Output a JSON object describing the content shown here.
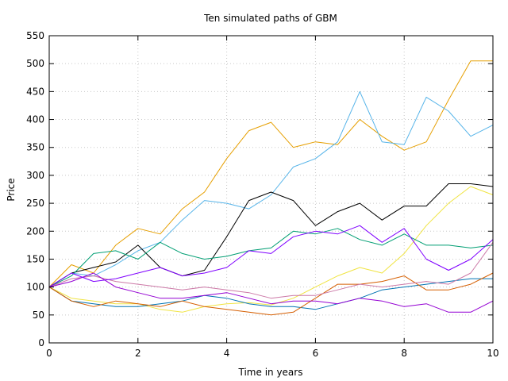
{
  "chart_data": {
    "type": "line",
    "title": "Ten simulated paths of GBM",
    "xlabel": "Time in years",
    "ylabel": "Price",
    "xlim": [
      0,
      10
    ],
    "ylim": [
      0,
      550
    ],
    "xticks": [
      0,
      2,
      4,
      6,
      8,
      10
    ],
    "yticks": [
      0,
      50,
      100,
      150,
      200,
      250,
      300,
      350,
      400,
      450,
      500,
      550
    ],
    "grid": true,
    "legend": "none",
    "series": [
      {
        "color": "#e69f00",
        "x": [
          0,
          0.5,
          1,
          1.5,
          2,
          2.5,
          3,
          3.5,
          4,
          4.5,
          5,
          5.5,
          6,
          6.5,
          7,
          7.5,
          8,
          8.5,
          9,
          9.5,
          10
        ],
        "values": [
          100,
          140,
          125,
          175,
          205,
          195,
          240,
          270,
          330,
          380,
          395,
          350,
          360,
          355,
          400,
          370,
          345,
          360,
          435,
          505,
          505
        ]
      },
      {
        "color": "#56b4e9",
        "x": [
          0,
          0.5,
          1,
          1.5,
          2,
          2.5,
          3,
          3.5,
          4,
          4.5,
          5,
          5.5,
          6,
          6.5,
          7,
          7.5,
          8,
          8.5,
          9,
          9.5,
          10
        ],
        "values": [
          100,
          125,
          120,
          140,
          165,
          180,
          220,
          255,
          250,
          240,
          265,
          315,
          330,
          360,
          450,
          360,
          355,
          440,
          415,
          370,
          390
        ]
      },
      {
        "color": "#000000",
        "x": [
          0,
          0.5,
          1,
          1.5,
          2,
          2.5,
          3,
          3.5,
          4,
          4.5,
          5,
          5.5,
          6,
          6.5,
          7,
          7.5,
          8,
          8.5,
          9,
          9.5,
          10
        ],
        "values": [
          100,
          125,
          135,
          145,
          175,
          135,
          120,
          130,
          190,
          255,
          270,
          255,
          210,
          235,
          250,
          220,
          245,
          245,
          285,
          285,
          280
        ]
      },
      {
        "color": "#f0e442",
        "x": [
          0,
          0.5,
          1,
          1.5,
          2,
          2.5,
          3,
          3.5,
          4,
          4.5,
          5,
          5.5,
          6,
          6.5,
          7,
          7.5,
          8,
          8.5,
          9,
          9.5,
          10
        ],
        "values": [
          100,
          80,
          75,
          70,
          70,
          60,
          55,
          65,
          70,
          72,
          68,
          80,
          100,
          120,
          135,
          125,
          160,
          210,
          250,
          280,
          265
        ]
      },
      {
        "color": "#009e73",
        "x": [
          0,
          0.5,
          1,
          1.5,
          2,
          2.5,
          3,
          3.5,
          4,
          4.5,
          5,
          5.5,
          6,
          6.5,
          7,
          7.5,
          8,
          8.5,
          9,
          9.5,
          10
        ],
        "values": [
          100,
          120,
          160,
          165,
          150,
          180,
          160,
          150,
          155,
          165,
          170,
          200,
          195,
          205,
          185,
          175,
          195,
          175,
          175,
          170,
          175
        ]
      },
      {
        "color": "#0072b2",
        "x": [
          0,
          0.5,
          1,
          1.5,
          2,
          2.5,
          3,
          3.5,
          4,
          4.5,
          5,
          5.5,
          6,
          6.5,
          7,
          7.5,
          8,
          8.5,
          9,
          9.5,
          10
        ],
        "values": [
          100,
          75,
          70,
          65,
          65,
          70,
          75,
          85,
          80,
          70,
          65,
          65,
          60,
          70,
          80,
          95,
          100,
          105,
          110,
          115,
          115
        ]
      },
      {
        "color": "#d55e00",
        "x": [
          0,
          0.5,
          1,
          1.5,
          2,
          2.5,
          3,
          3.5,
          4,
          4.5,
          5,
          5.5,
          6,
          6.5,
          7,
          7.5,
          8,
          8.5,
          9,
          9.5,
          10
        ],
        "values": [
          100,
          75,
          65,
          75,
          70,
          65,
          75,
          65,
          60,
          55,
          50,
          55,
          80,
          105,
          105,
          110,
          120,
          95,
          95,
          105,
          125
        ]
      },
      {
        "color": "#cc79a7",
        "x": [
          0,
          0.5,
          1,
          1.5,
          2,
          2.5,
          3,
          3.5,
          4,
          4.5,
          5,
          5.5,
          6,
          6.5,
          7,
          7.5,
          8,
          8.5,
          9,
          9.5,
          10
        ],
        "values": [
          100,
          115,
          120,
          110,
          105,
          100,
          95,
          100,
          95,
          90,
          80,
          85,
          85,
          95,
          105,
          100,
          105,
          110,
          105,
          125,
          180
        ]
      },
      {
        "color": "#9400d3",
        "x": [
          0,
          0.5,
          1,
          1.5,
          2,
          2.5,
          3,
          3.5,
          4,
          4.5,
          5,
          5.5,
          6,
          6.5,
          7,
          7.5,
          8,
          8.5,
          9,
          9.5,
          10
        ],
        "values": [
          100,
          110,
          125,
          100,
          90,
          80,
          80,
          85,
          90,
          80,
          70,
          75,
          75,
          70,
          80,
          75,
          65,
          70,
          55,
          55,
          75
        ]
      },
      {
        "color": "#7f00ff",
        "x": [
          0,
          0.5,
          1,
          1.5,
          2,
          2.5,
          3,
          3.5,
          4,
          4.5,
          5,
          5.5,
          6,
          6.5,
          7,
          7.5,
          8,
          8.5,
          9,
          9.5,
          10
        ],
        "values": [
          100,
          125,
          110,
          115,
          125,
          135,
          120,
          125,
          135,
          165,
          160,
          190,
          200,
          195,
          210,
          180,
          205,
          150,
          130,
          150,
          185
        ]
      }
    ]
  }
}
